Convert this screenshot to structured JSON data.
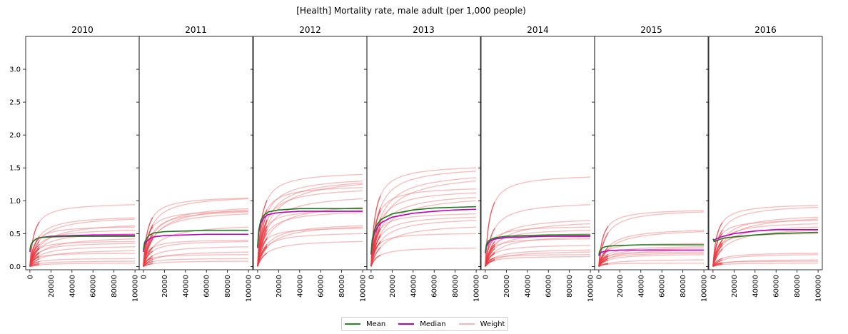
{
  "chart_data": {
    "type": "line",
    "title": "[Health] Mortality rate, male adult (per 1,000 people)",
    "panels": [
      "2010",
      "2011",
      "2012",
      "2013",
      "2014",
      "2015",
      "2016"
    ],
    "x_ticks": [
      0,
      20000,
      40000,
      60000,
      80000,
      100000
    ],
    "xlim": [
      -4000,
      104000
    ],
    "y_ticks": [
      0.0,
      0.5,
      1.0,
      1.5,
      2.0,
      2.5,
      3.0
    ],
    "y_tick_labels": [
      "0.0",
      "0.5",
      "1.0",
      "1.5",
      "2.0",
      "2.5",
      "3.0"
    ],
    "ylim": [
      -0.05,
      3.5
    ],
    "legend": {
      "placement": "bottom-center",
      "entries": [
        {
          "label": "Mean",
          "color": "#228b22"
        },
        {
          "label": "Median",
          "color": "#c000c0"
        },
        {
          "label": "Weight",
          "color": "#f4b6b6"
        }
      ]
    },
    "colors": {
      "mean": "#1f7a1f",
      "median": "#bf00bf",
      "weight": "#f08080",
      "weight_start": "#e8202a"
    },
    "series_x": [
      0,
      1000,
      3000,
      6000,
      10000,
      20000,
      40000,
      60000,
      80000,
      100000
    ],
    "series": [
      {
        "panel": "2010",
        "mean": [
          0.25,
          0.33,
          0.38,
          0.42,
          0.44,
          0.45,
          0.46,
          0.46,
          0.46,
          0.46
        ],
        "median": [
          0.22,
          0.33,
          0.38,
          0.42,
          0.44,
          0.46,
          0.47,
          0.48,
          0.48,
          0.48
        ],
        "weights": [
          0.94,
          0.74,
          0.72,
          0.62,
          0.6,
          0.55,
          0.5,
          0.42,
          0.38,
          0.35,
          0.3,
          0.24,
          0.2,
          0.12,
          0.08,
          0.05
        ]
      },
      {
        "panel": "2011",
        "mean": [
          0.25,
          0.36,
          0.43,
          0.48,
          0.51,
          0.53,
          0.54,
          0.55,
          0.55,
          0.55
        ],
        "median": [
          0.22,
          0.33,
          0.38,
          0.42,
          0.45,
          0.47,
          0.48,
          0.49,
          0.49,
          0.49
        ],
        "weights": [
          1.04,
          1.03,
          0.88,
          0.86,
          0.84,
          0.83,
          0.8,
          0.6,
          0.4,
          0.38,
          0.3,
          0.22,
          0.18,
          0.12,
          0.08
        ]
      },
      {
        "panel": "2012",
        "mean": [
          0.3,
          0.55,
          0.7,
          0.78,
          0.83,
          0.86,
          0.88,
          0.88,
          0.88,
          0.88
        ],
        "median": [
          0.28,
          0.52,
          0.66,
          0.74,
          0.79,
          0.82,
          0.84,
          0.84,
          0.84,
          0.84
        ],
        "weights": [
          1.4,
          1.3,
          1.27,
          1.25,
          1.2,
          1.15,
          1.03,
          0.9,
          0.85,
          0.82,
          0.62,
          0.6,
          0.58,
          0.5,
          0.38
        ]
      },
      {
        "panel": "2013",
        "mean": [
          0.2,
          0.4,
          0.55,
          0.65,
          0.72,
          0.8,
          0.86,
          0.89,
          0.9,
          0.91
        ],
        "median": [
          0.18,
          0.37,
          0.5,
          0.6,
          0.67,
          0.75,
          0.81,
          0.84,
          0.86,
          0.87
        ],
        "weights": [
          1.5,
          1.45,
          1.35,
          1.3,
          1.18,
          1.12,
          1.05,
          1.0,
          0.8,
          0.75,
          0.7,
          0.6,
          0.5,
          0.28
        ]
      },
      {
        "panel": "2014",
        "mean": [
          0.22,
          0.33,
          0.39,
          0.42,
          0.44,
          0.46,
          0.47,
          0.48,
          0.48,
          0.48
        ],
        "median": [
          0.2,
          0.3,
          0.36,
          0.4,
          0.42,
          0.44,
          0.45,
          0.46,
          0.46,
          0.46
        ],
        "weights": [
          1.36,
          0.94,
          0.7,
          0.65,
          0.6,
          0.55,
          0.5,
          0.45,
          0.42,
          0.32,
          0.25,
          0.22,
          0.18,
          0.15
        ]
      },
      {
        "panel": "2015",
        "mean": [
          0.18,
          0.24,
          0.28,
          0.3,
          0.31,
          0.32,
          0.33,
          0.33,
          0.33,
          0.33
        ],
        "median": [
          0.16,
          0.2,
          0.22,
          0.23,
          0.24,
          0.25,
          0.25,
          0.25,
          0.25,
          0.25
        ],
        "weights": [
          0.85,
          0.83,
          0.55,
          0.53,
          0.35,
          0.3,
          0.28,
          0.25,
          0.22,
          0.2,
          0.18,
          0.1,
          0.05
        ]
      },
      {
        "panel": "2016",
        "mean": [
          0.42,
          0.38,
          0.39,
          0.41,
          0.43,
          0.45,
          0.48,
          0.5,
          0.51,
          0.52
        ],
        "median": [
          0.42,
          0.4,
          0.42,
          0.44,
          0.46,
          0.5,
          0.54,
          0.56,
          0.56,
          0.56
        ],
        "weights": [
          0.93,
          0.9,
          0.75,
          0.72,
          0.7,
          0.65,
          0.6,
          0.55,
          0.5,
          0.2,
          0.18,
          0.1,
          0.08,
          0.05
        ]
      }
    ]
  }
}
